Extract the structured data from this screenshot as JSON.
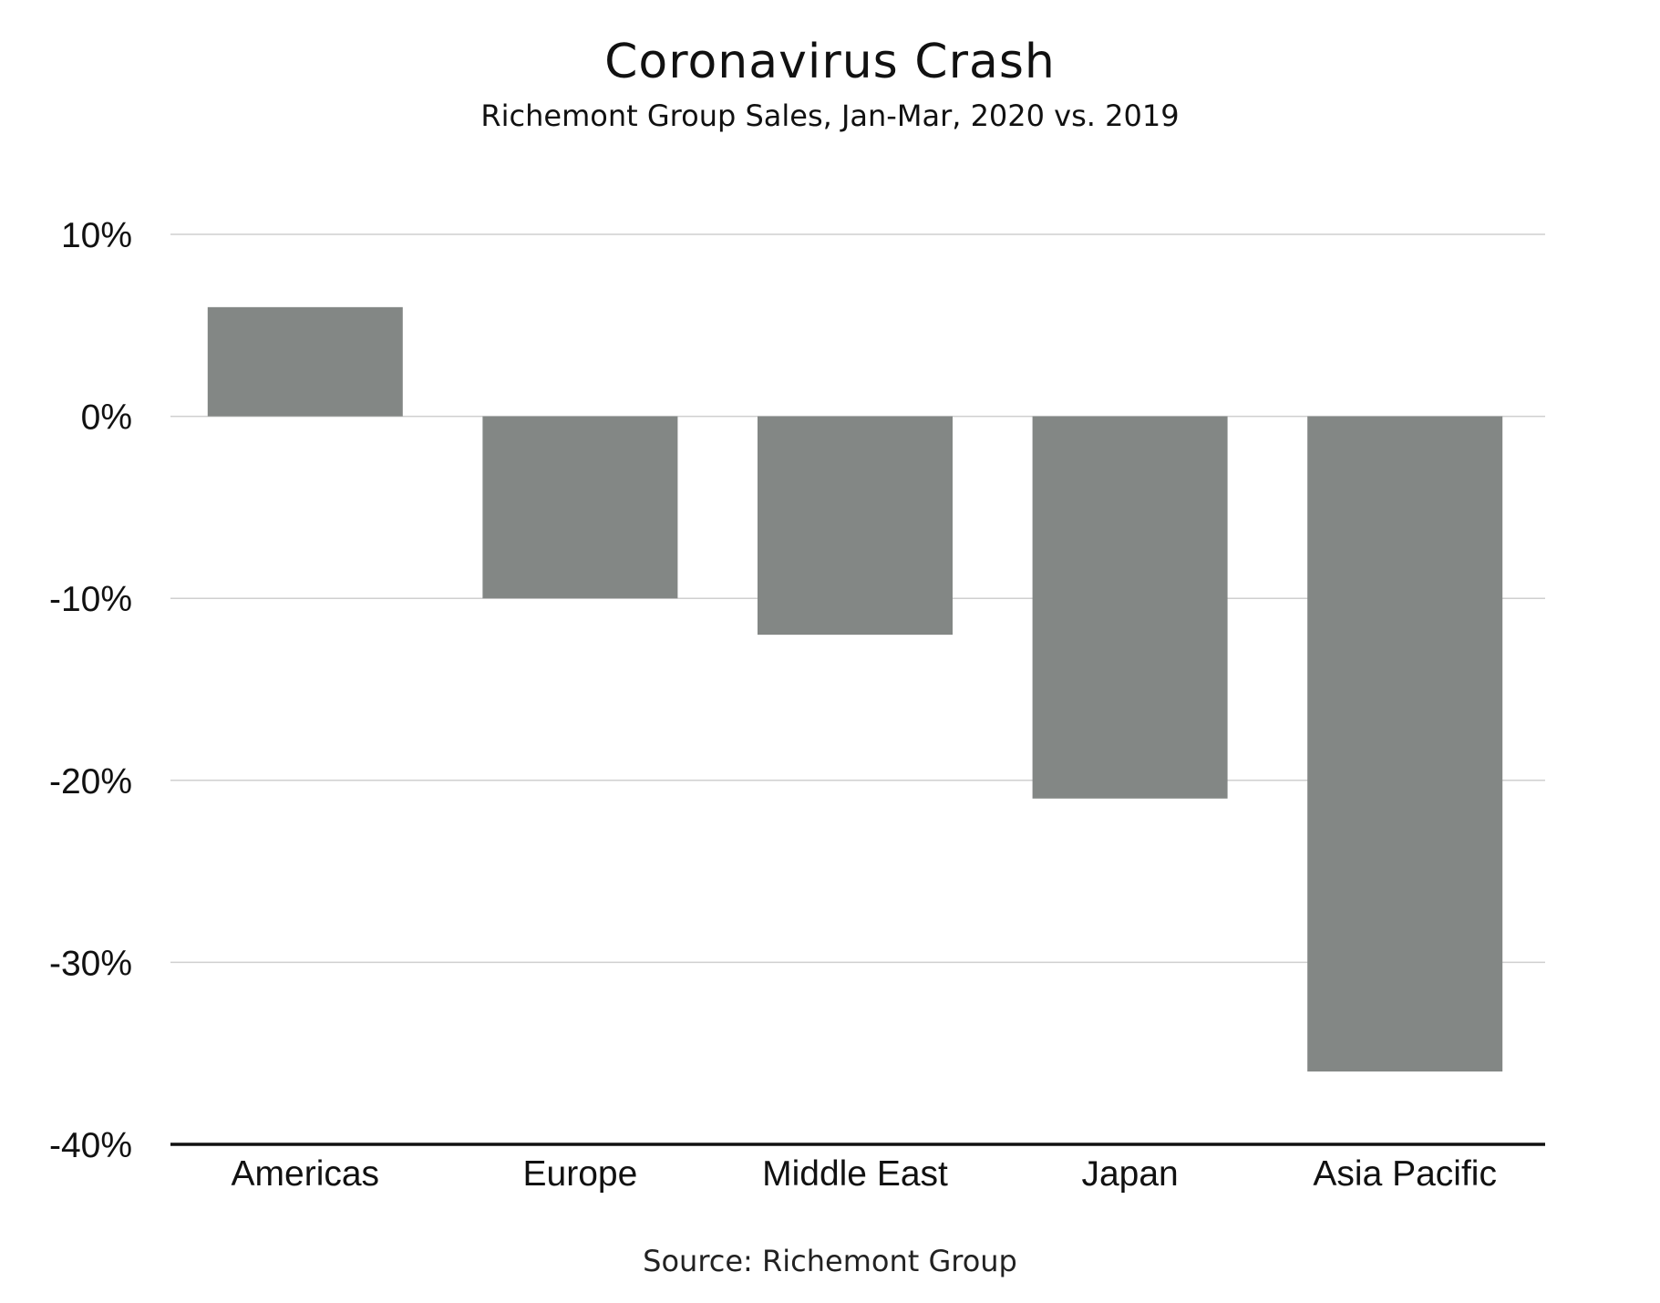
{
  "chart_data": {
    "type": "bar",
    "title": "Coronavirus Crash",
    "subtitle": "Richemont Group Sales, Jan-Mar, 2020 vs. 2019",
    "source": "Source: Richemont Group",
    "xlabel": "",
    "ylabel": "",
    "categories": [
      "Americas",
      "Europe",
      "Middle East",
      "Japan",
      "Asia Pacific"
    ],
    "values": [
      6,
      -10,
      -12,
      -21,
      -36
    ],
    "unit": "%",
    "ylim": [
      -40,
      10
    ],
    "yticks": [
      10,
      0,
      -10,
      -20,
      -30,
      -40
    ],
    "ytick_labels": [
      "10%",
      "0%",
      "-10%",
      "-20%",
      "-30%",
      "-40%"
    ],
    "grid": true,
    "legend": "none",
    "bar_color": "#838785",
    "grid_color": "#cfcfcf",
    "axis_color": "#111111"
  }
}
